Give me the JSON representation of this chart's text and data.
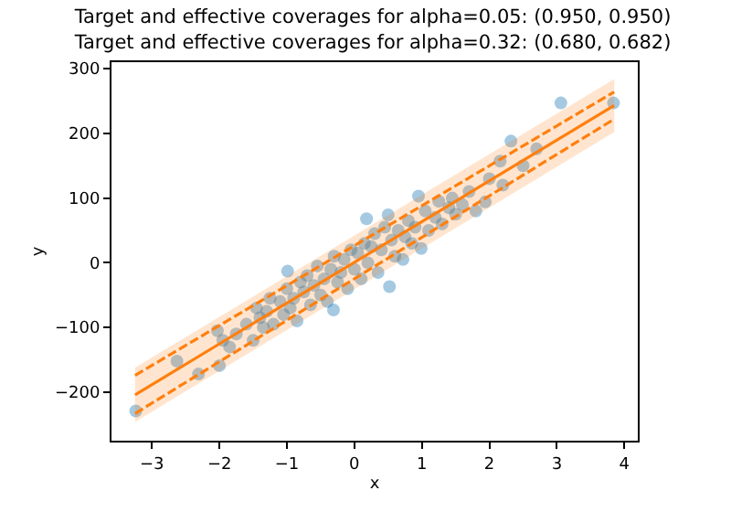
{
  "chart_data": {
    "type": "scatter",
    "title": "Target and effective coverages for alpha=0.05: (0.950, 0.950)\nTarget and effective coverages for alpha=0.32: (0.680, 0.682)",
    "xlabel": "x",
    "ylabel": "y",
    "xlim": [
      -3.6,
      4.2
    ],
    "ylim": [
      -275,
      310
    ],
    "xticks": [
      -3,
      -2,
      -1,
      0,
      1,
      2,
      3,
      4
    ],
    "yticks": [
      -200,
      -100,
      0,
      100,
      200,
      300
    ],
    "series": [
      {
        "marker": "circle",
        "color": "#1f77b4",
        "x": [
          -3.24,
          -2.63,
          -2.31,
          -2.0,
          -2.03,
          -1.95,
          -1.85,
          -1.75,
          -1.6,
          -1.5,
          -1.45,
          -1.4,
          -1.35,
          -1.3,
          -1.25,
          -1.2,
          -1.1,
          -1.05,
          -1.0,
          -0.99,
          -0.95,
          -0.9,
          -0.85,
          -0.8,
          -0.75,
          -0.7,
          -0.65,
          -0.6,
          -0.55,
          -0.5,
          -0.45,
          -0.4,
          -0.35,
          -0.31,
          -0.3,
          -0.25,
          -0.2,
          -0.15,
          -0.1,
          -0.05,
          0.0,
          0.05,
          0.1,
          0.15,
          0.18,
          0.2,
          0.25,
          0.3,
          0.35,
          0.4,
          0.45,
          0.5,
          0.52,
          0.55,
          0.6,
          0.65,
          0.72,
          0.75,
          0.8,
          0.85,
          0.9,
          0.95,
          0.99,
          1.05,
          1.1,
          1.2,
          1.25,
          1.3,
          1.4,
          1.45,
          1.5,
          1.6,
          1.7,
          1.8,
          1.94,
          2.0,
          2.16,
          2.2,
          2.32,
          2.5,
          2.7,
          3.06,
          3.84
        ],
        "values": [
          -229,
          -152,
          -172,
          -159,
          -105,
          -120,
          -130,
          -110,
          -95,
          -120,
          -70,
          -85,
          -100,
          -75,
          -55,
          -95,
          -60,
          -80,
          -40,
          -13,
          -70,
          -55,
          -90,
          -30,
          -45,
          -20,
          -65,
          -35,
          -5,
          -50,
          -25,
          -60,
          -10,
          -73,
          10,
          -30,
          -15,
          5,
          -40,
          20,
          -10,
          15,
          -25,
          30,
          68,
          0,
          25,
          45,
          -15,
          20,
          55,
          74,
          -37,
          35,
          10,
          50,
          5,
          40,
          65,
          30,
          55,
          103,
          22,
          80,
          50,
          70,
          95,
          60,
          85,
          100,
          75,
          90,
          110,
          80,
          94,
          130,
          157,
          120,
          188,
          150,
          176,
          247,
          247
        ]
      },
      {
        "type": "line",
        "marker": "none",
        "line_style": "solid",
        "color": "#ff7f0e",
        "x": [
          -3.25,
          3.85
        ],
        "values": [
          -204,
          243
        ],
        "lower": [
          -246,
          202
        ],
        "upper": [
          -162,
          284
        ]
      },
      {
        "type": "line",
        "marker": "none",
        "line_style": "dashed",
        "color": "#ff7f0e",
        "x": [
          -3.25,
          3.85
        ],
        "values": [
          -174,
          264
        ]
      },
      {
        "type": "line",
        "marker": "none",
        "line_style": "dashed",
        "color": "#ff7f0e",
        "x": [
          -3.25,
          3.85
        ],
        "values": [
          -233,
          222
        ]
      }
    ]
  }
}
